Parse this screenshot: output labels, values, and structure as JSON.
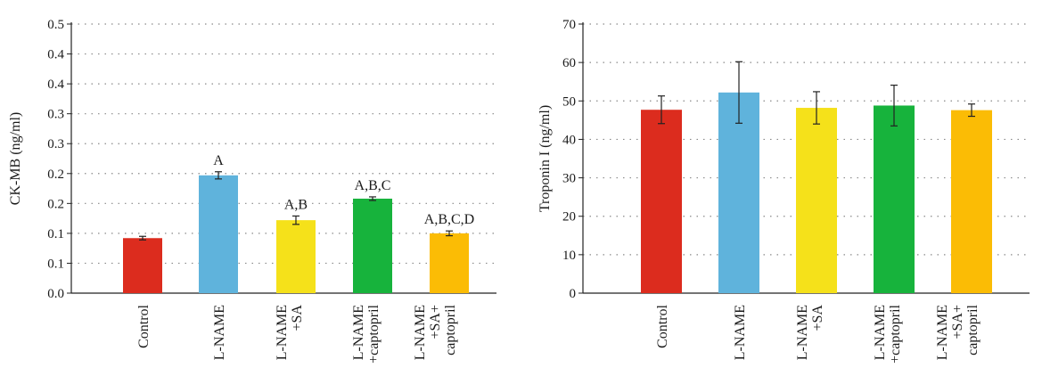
{
  "chart_data": [
    {
      "type": "bar",
      "ylabel": "CK-MB (ng/ml)",
      "ylim": [
        0,
        0.45
      ],
      "y_ticks": [
        0,
        0.05,
        0.1,
        0.15,
        0.2,
        0.25,
        0.3,
        0.35,
        0.4,
        0.45
      ],
      "y_tick_labels": [
        "0.0",
        "0.1",
        "0.1",
        "0.2",
        "0.2",
        "0.3",
        "0.3",
        "0.4",
        "0.4",
        "0.5"
      ],
      "grid": true,
      "categories": [
        [
          "Control"
        ],
        [
          "L-NAME"
        ],
        [
          "L-NAME",
          "+SA"
        ],
        [
          "L-NAME",
          "+captopril"
        ],
        [
          "L-NAME",
          "+SA+",
          "captopril"
        ]
      ],
      "values": [
        0.092,
        0.197,
        0.122,
        0.158,
        0.1
      ],
      "errors": [
        0.003,
        0.006,
        0.007,
        0.003,
        0.004
      ],
      "annotations": [
        "",
        "A",
        "A,B",
        "A,B,C",
        "A,B,C,D"
      ],
      "colors": [
        "#dc2c1e",
        "#5fb3dc",
        "#f5e11a",
        "#17b33c",
        "#fbbc05"
      ]
    },
    {
      "type": "bar",
      "ylabel": "Troponin I (ng/ml)",
      "ylim": [
        0,
        70
      ],
      "y_ticks": [
        0,
        10,
        20,
        30,
        40,
        50,
        60,
        70
      ],
      "y_tick_labels": [
        "0",
        "10",
        "20",
        "30",
        "40",
        "50",
        "60",
        "70"
      ],
      "grid": true,
      "categories": [
        [
          "Control"
        ],
        [
          "L-NAME"
        ],
        [
          "L-NAME",
          "+SA"
        ],
        [
          "L-NAME",
          "+captopril"
        ],
        [
          "L-NAME",
          "+SA+",
          "captopril"
        ]
      ],
      "values": [
        47.7,
        52.2,
        48.2,
        48.8,
        47.6
      ],
      "errors": [
        3.6,
        8.0,
        4.2,
        5.3,
        1.6
      ],
      "annotations": [
        "",
        "",
        "",
        "",
        ""
      ],
      "colors": [
        "#dc2c1e",
        "#5fb3dc",
        "#f5e11a",
        "#17b33c",
        "#fbbc05"
      ]
    }
  ]
}
